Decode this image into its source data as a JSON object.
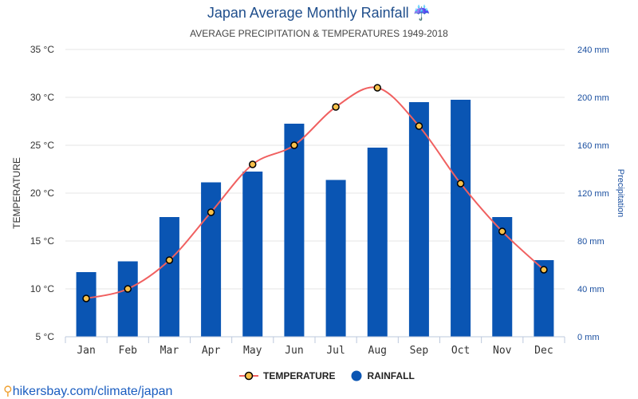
{
  "title": "Japan Average Monthly Rainfall",
  "title_icon": "umbrella-rain-icon",
  "subtitle": "AVERAGE PRECIPITATION & TEMPERATURES 1949-2018",
  "source": "hikersbay.com/climate/japan",
  "colors": {
    "temperature_line": "#f06060",
    "temperature_marker": "#f7c04a",
    "rainfall": "#0a55b3"
  },
  "chart_data": {
    "type": "bar+line",
    "categories": [
      "Jan",
      "Feb",
      "Mar",
      "Apr",
      "May",
      "Jun",
      "Jul",
      "Aug",
      "Sep",
      "Oct",
      "Nov",
      "Dec"
    ],
    "series": [
      {
        "name": "TEMPERATURE",
        "type": "line",
        "axis": "left",
        "values": [
          9,
          10,
          13,
          18,
          23,
          25,
          29,
          31,
          27,
          21,
          16,
          12
        ]
      },
      {
        "name": "RAINFALL",
        "type": "bar",
        "axis": "right",
        "values": [
          54,
          63,
          100,
          129,
          138,
          178,
          131,
          158,
          196,
          198,
          100,
          64
        ]
      }
    ],
    "ylabel_left": "TEMPERATURE",
    "ylabel_right": "Precipitation",
    "ylim_left": [
      5,
      35
    ],
    "ylim_right": [
      0,
      240
    ],
    "yticks_left": [
      "5 °C",
      "10 °C",
      "15 °C",
      "20 °C",
      "25 °C",
      "30 °C",
      "35 °C"
    ],
    "yticks_right": [
      "0 mm",
      "40 mm",
      "80 mm",
      "120 mm",
      "160 mm",
      "200 mm",
      "240 mm"
    ],
    "grid": true,
    "legend": "bottom"
  }
}
